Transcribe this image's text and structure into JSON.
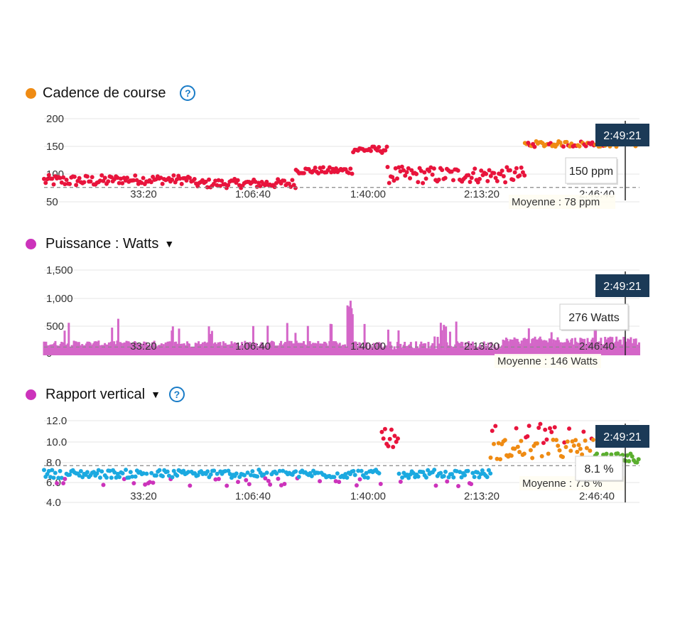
{
  "panels": [
    {
      "title": "Cadence de course",
      "dot_color": "#ef8b13",
      "has_dropdown": false,
      "has_help": true,
      "help_icon": "question-circle-icon",
      "y_ticks": [
        "200",
        "150",
        "100",
        "50"
      ],
      "x_ticks": [
        "33:20",
        "1:06:40",
        "1:40:00",
        "2:13:20",
        "2:46:40"
      ],
      "cursor_time": "2:49:21",
      "cursor_value": "150 ppm",
      "average_label": "Moyenne : 78 ppm"
    },
    {
      "title": "Puissance : Watts",
      "dot_color": "#cc33bb",
      "has_dropdown": true,
      "has_help": false,
      "y_ticks": [
        "1,500",
        "1,000",
        "500",
        "0"
      ],
      "x_ticks": [
        "33:20",
        "1:06:40",
        "1:40:00",
        "2:13:20",
        "2:46:40"
      ],
      "cursor_time": "2:49:21",
      "cursor_value": "276 Watts",
      "average_label": "Moyenne : 146 Watts"
    },
    {
      "title": "Rapport vertical",
      "dot_color": "#cc33bb",
      "has_dropdown": true,
      "has_help": true,
      "help_icon": "question-circle-icon",
      "y_ticks": [
        "12.0",
        "10.0",
        "8.0",
        "6.0",
        "4.0"
      ],
      "x_ticks": [
        "33:20",
        "1:06:40",
        "1:40:00",
        "2:13:20",
        "2:46:40"
      ],
      "cursor_time": "2:49:21",
      "cursor_value": "8.1 %",
      "average_label": "Moyenne : 7.6 %"
    }
  ],
  "chart_data": [
    {
      "type": "scatter",
      "title": "Cadence de course",
      "ylabel": "",
      "ylim": [
        50,
        200
      ],
      "y_ticks": [
        200,
        150,
        100,
        50
      ],
      "x_tick_labels": [
        "33:20",
        "1:06:40",
        "1:40:00",
        "2:13:20",
        "2:46:40"
      ],
      "x_unit": "seconds",
      "xlim": [
        0,
        10400
      ],
      "average": 78,
      "cursor": {
        "time": "2:49:21",
        "value": 150,
        "unit": "ppm"
      },
      "color_zones": {
        "red": "#e8143c",
        "orange": "#ef8b13",
        "green": "#5aae2e",
        "blue": "#1ba9e0"
      },
      "series_profile": [
        {
          "x0": 0,
          "x1": 1200,
          "y": 90,
          "spread": 10,
          "color": "red"
        },
        {
          "x0": 1200,
          "x1": 2600,
          "y": 92,
          "spread": 8,
          "color": "red"
        },
        {
          "x0": 2600,
          "x1": 4400,
          "y": 85,
          "spread": 8,
          "color": "red"
        },
        {
          "x0": 4400,
          "x1": 5400,
          "y": 108,
          "spread": 6,
          "color": "red"
        },
        {
          "x0": 5400,
          "x1": 6000,
          "y": 145,
          "spread": 6,
          "color": "red"
        },
        {
          "x0": 6000,
          "x1": 7300,
          "y": 100,
          "spread": 15,
          "color": "red"
        },
        {
          "x0": 7300,
          "x1": 8400,
          "y": 100,
          "spread": 14,
          "color": "red"
        },
        {
          "x0": 8400,
          "x1": 10400,
          "y": 155,
          "spread": 5,
          "color": "orange"
        }
      ]
    },
    {
      "type": "area",
      "title": "Puissance : Watts",
      "ylabel": "",
      "ylim": [
        0,
        1500
      ],
      "y_ticks": [
        1500,
        1000,
        500,
        0
      ],
      "x_tick_labels": [
        "33:20",
        "1:06:40",
        "1:40:00",
        "2:13:20",
        "2:46:40"
      ],
      "x_unit": "seconds",
      "xlim": [
        0,
        10400
      ],
      "average": 146,
      "color": "#d466c8",
      "cursor": {
        "time": "2:49:21",
        "value": 276,
        "unit": "Watts"
      },
      "series_profile": [
        {
          "x0": 0,
          "x1": 5300,
          "y": 200,
          "spread": 60
        },
        {
          "x0": 5300,
          "x1": 5400,
          "y": 1050,
          "spread": 0
        },
        {
          "x0": 5400,
          "x1": 8000,
          "y": 170,
          "spread": 80
        },
        {
          "x0": 8000,
          "x1": 10400,
          "y": 250,
          "spread": 80
        }
      ]
    },
    {
      "type": "scatter",
      "title": "Rapport vertical",
      "ylabel": "",
      "ylim": [
        4.0,
        12.0
      ],
      "y_ticks": [
        12.0,
        10.0,
        8.0,
        6.0,
        4.0
      ],
      "x_tick_labels": [
        "33:20",
        "1:06:40",
        "1:40:00",
        "2:13:20",
        "2:46:40"
      ],
      "x_unit": "seconds",
      "xlim": [
        0,
        10400
      ],
      "average": 7.6,
      "cursor": {
        "time": "2:49:21",
        "value": 8.1,
        "unit": "%"
      },
      "color_zones": {
        "red": "#e8143c",
        "orange": "#ef8b13",
        "green": "#5aae2e",
        "blue": "#1ba9e0",
        "purple": "#cc33bb"
      },
      "series_profile": [
        {
          "x0": 0,
          "x1": 5900,
          "y": 6.8,
          "spread": 0.4,
          "color": "blue"
        },
        {
          "x0": 5900,
          "x1": 6200,
          "y": 10.5,
          "spread": 1.2,
          "color": "red"
        },
        {
          "x0": 6200,
          "x1": 7800,
          "y": 6.8,
          "spread": 0.4,
          "color": "blue"
        },
        {
          "x0": 7800,
          "x1": 9600,
          "y": 9.2,
          "spread": 1.0,
          "color": "orange"
        },
        {
          "x0": 9600,
          "x1": 10400,
          "y": 8.3,
          "spread": 0.5,
          "color": "green"
        }
      ]
    }
  ]
}
